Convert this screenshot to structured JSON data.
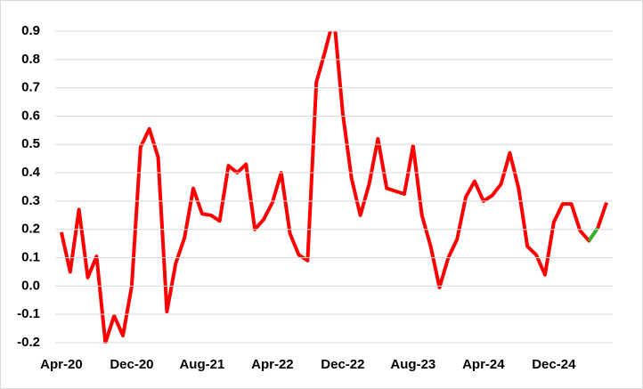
{
  "chart_data": {
    "type": "line",
    "categories": [
      "Apr-20",
      null,
      null,
      null,
      null,
      null,
      null,
      null,
      "Dec-20",
      null,
      null,
      null,
      null,
      null,
      null,
      null,
      "Aug-21",
      null,
      null,
      null,
      null,
      null,
      null,
      null,
      "Apr-22",
      null,
      null,
      null,
      null,
      null,
      null,
      null,
      "Dec-22",
      null,
      null,
      null,
      null,
      null,
      null,
      null,
      "Aug-23",
      null,
      null,
      null,
      null,
      null,
      null,
      null,
      "Apr-24",
      null,
      null,
      null,
      null,
      null,
      null,
      null,
      "Dec-24",
      null,
      null,
      null,
      null,
      null,
      null
    ],
    "series": [
      {
        "color": "#ff0000",
        "values": [
          0.19,
          0.05,
          0.27,
          0.03,
          0.105,
          -0.2,
          -0.105,
          -0.175,
          0.0,
          0.49,
          0.555,
          0.455,
          -0.09,
          0.08,
          0.17,
          0.345,
          0.255,
          0.25,
          0.23,
          0.425,
          0.4,
          0.43,
          0.2,
          0.235,
          0.295,
          0.4,
          0.185,
          0.11,
          0.09,
          0.72,
          0.83,
          0.95,
          0.61,
          0.38,
          0.25,
          0.36,
          0.52,
          0.345,
          0.335,
          0.325,
          0.495,
          0.25,
          0.14,
          -0.005,
          0.1,
          0.165,
          0.315,
          0.37,
          0.3,
          0.32,
          0.36,
          0.47,
          0.345,
          0.14,
          0.11,
          0.04,
          0.225,
          0.29,
          0.29,
          0.195,
          0.16,
          0.205,
          0.295
        ]
      },
      {
        "color": "#33b233",
        "values": [
          null,
          null,
          null,
          null,
          null,
          null,
          null,
          null,
          null,
          null,
          null,
          null,
          null,
          null,
          null,
          null,
          null,
          null,
          null,
          null,
          null,
          null,
          null,
          null,
          null,
          null,
          null,
          null,
          null,
          null,
          null,
          null,
          null,
          null,
          null,
          null,
          null,
          null,
          null,
          null,
          null,
          null,
          null,
          null,
          null,
          null,
          null,
          null,
          null,
          null,
          null,
          null,
          null,
          null,
          null,
          null,
          null,
          null,
          null,
          null,
          0.16,
          0.205,
          null
        ]
      }
    ],
    "ylim": [
      -0.2,
      0.9
    ],
    "yticks": [
      -0.2,
      -0.1,
      {
        "value": 0,
        "label": "0.0"
      },
      0.1,
      0.2,
      0.3,
      0.4,
      0.5,
      0.6,
      0.7,
      0.8,
      0.9
    ],
    "grid": true
  }
}
